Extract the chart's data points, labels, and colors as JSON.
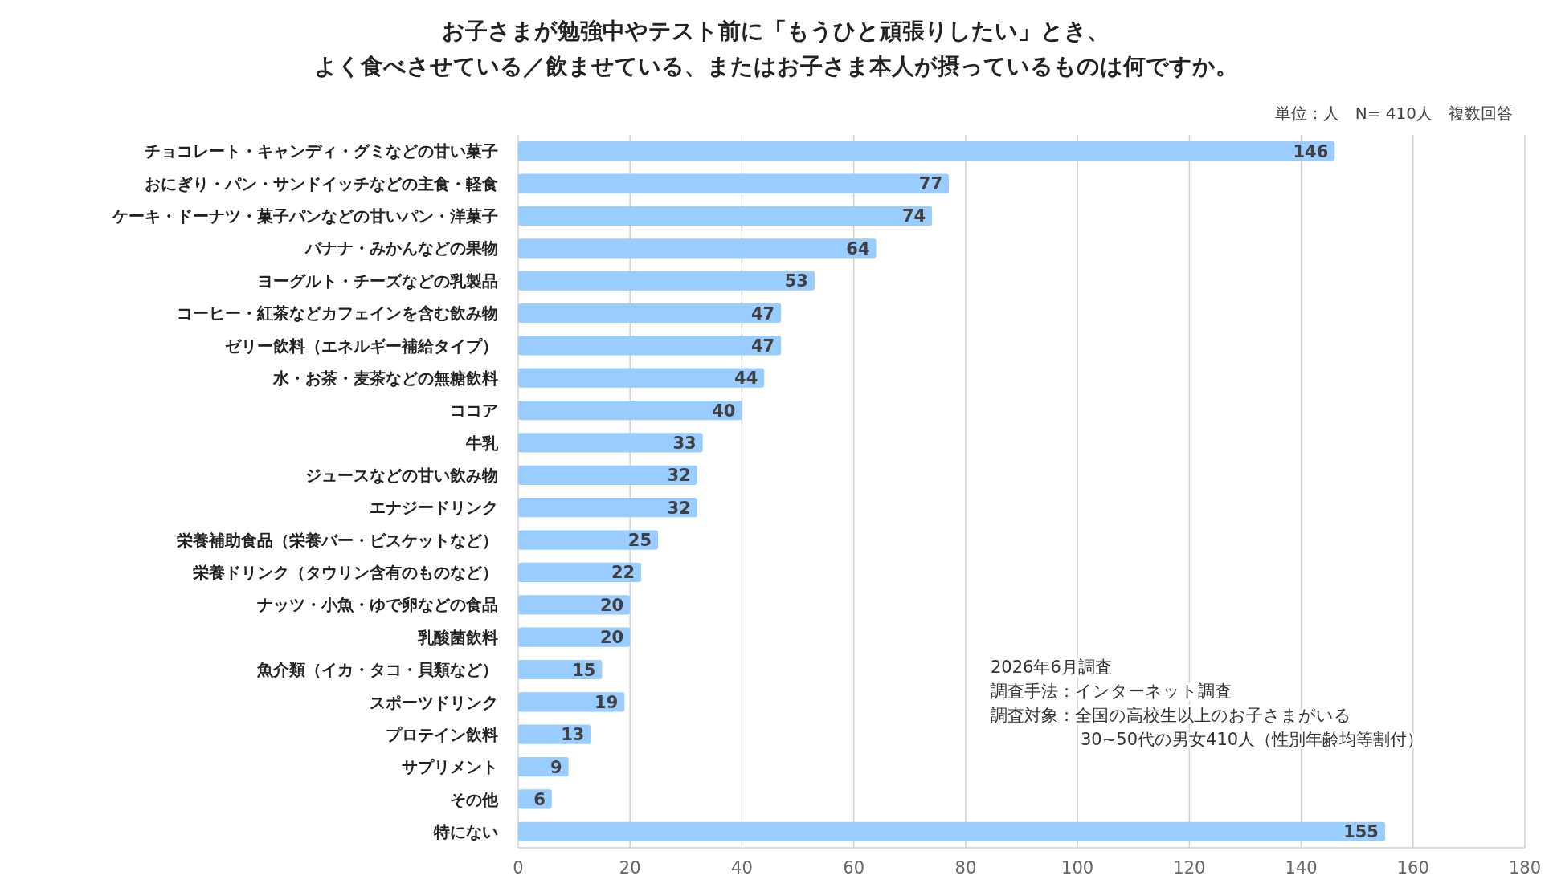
{
  "chart_data": {
    "type": "bar",
    "orientation": "horizontal",
    "title": "お子さまが勉強中やテスト前に「もうひと頑張りしたい」とき、よく食べさせている／飲ませている、またはお子さま本人が摂っているものは何ですか。",
    "subtitle": "単位：人　N= 410人　複数回答",
    "categories": [
      "チョコレート・キャンディ・グミなどの甘い菓子",
      "おにぎり・パン・サンドイッチなどの主食・軽食",
      "ケーキ・ドーナツ・菓子パンなどの甘いパン・洋菓子",
      "バナナ・みかんなどの果物",
      "ヨーグルト・チーズなどの乳製品",
      "コーヒー・紅茶などカフェインを含む飲み物",
      "ゼリー飲料（エネルギー補給タイプ）",
      "水・お茶・麦茶などの無糖飲料",
      "ココア",
      "牛乳",
      "ジュースなどの甘い飲み物",
      "エナジードリンク",
      "栄養補助食品（栄養バー・ビスケットなど）",
      "栄養ドリンク（タウリン含有のものなど）",
      "ナッツ・小魚・ゆで卵などの食品",
      "乳酸菌飲料",
      "魚介類（イカ・タコ・貝類など）",
      "スポーツドリンク",
      "プロテイン飲料",
      "サプリメント",
      "その他",
      "特にない"
    ],
    "values": [
      146,
      77,
      74,
      64,
      53,
      47,
      47,
      44,
      40,
      33,
      32,
      32,
      25,
      22,
      20,
      20,
      15,
      19,
      13,
      9,
      6,
      155
    ],
    "color": "#99ccff",
    "xlim": [
      0,
      180
    ],
    "xticks": [
      0,
      20,
      40,
      60,
      80,
      100,
      120,
      140,
      160,
      180
    ],
    "grid": "x",
    "data_labels": true,
    "annotations": [
      "2026年6月調査",
      "調査手法：インターネット調査",
      "調査対象：全国の高校生以上のお子さまがいる\n30~50代の男女410人（性別年齢均等割付）"
    ]
  }
}
